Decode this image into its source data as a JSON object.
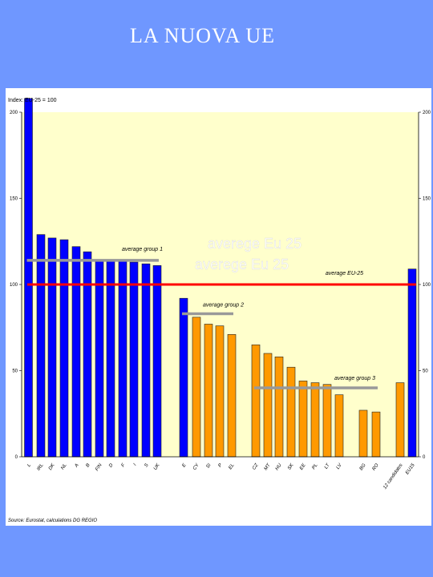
{
  "slide": {
    "title": "LA NUOVA UE"
  },
  "chart_data": {
    "type": "bar",
    "ylabel": "Index: EU-25 = 100",
    "ylim": [
      0,
      200
    ],
    "yticks": [
      0,
      50,
      100,
      150,
      200
    ],
    "grid": false,
    "background": "#ffffcc",
    "source": "Source: Eurostat, calculations DG REGIO",
    "categories": [
      "L",
      "IRL",
      "DK",
      "NL",
      "A",
      "B",
      "FIN",
      "D",
      "F",
      "I",
      "S",
      "UK",
      "E",
      "CY",
      "SI",
      "P",
      "EL",
      "CZ",
      "MT",
      "HU",
      "SK",
      "EE",
      "PL",
      "LT",
      "LV",
      "BG",
      "RO",
      "12 candidates",
      "EU15"
    ],
    "values": [
      208,
      129,
      127,
      126,
      122,
      119,
      114,
      114,
      114,
      113,
      112,
      111,
      92,
      81,
      77,
      76,
      71,
      65,
      60,
      58,
      52,
      44,
      43,
      42,
      36,
      27,
      26,
      43,
      109
    ],
    "colors": {
      "group_high": "#0000ff",
      "group_low": "#ff9900",
      "eu_average_line": "#ff0000",
      "group_average_line": "#999999"
    },
    "bar_groups": [
      "blue",
      "blue",
      "blue",
      "blue",
      "blue",
      "blue",
      "blue",
      "blue",
      "blue",
      "blue",
      "blue",
      "blue",
      "blue",
      "orange",
      "orange",
      "orange",
      "orange",
      "orange",
      "orange",
      "orange",
      "orange",
      "orange",
      "orange",
      "orange",
      "orange",
      "orange",
      "orange",
      "orange",
      "blue"
    ],
    "reference_lines": [
      {
        "label": "average EU-25",
        "value": 100,
        "color": "#ff0000"
      },
      {
        "label": "average group 1",
        "value": 114,
        "color": "#999999",
        "from": 0,
        "to": 11
      },
      {
        "label": "average group 2",
        "value": 83,
        "color": "#999999",
        "from": 12,
        "to": 16
      },
      {
        "label": "average group 3",
        "value": 40,
        "color": "#999999",
        "from": 17,
        "to": 26
      }
    ],
    "overlay_text": [
      "averege Eu 25",
      "averege Eu 25"
    ]
  }
}
